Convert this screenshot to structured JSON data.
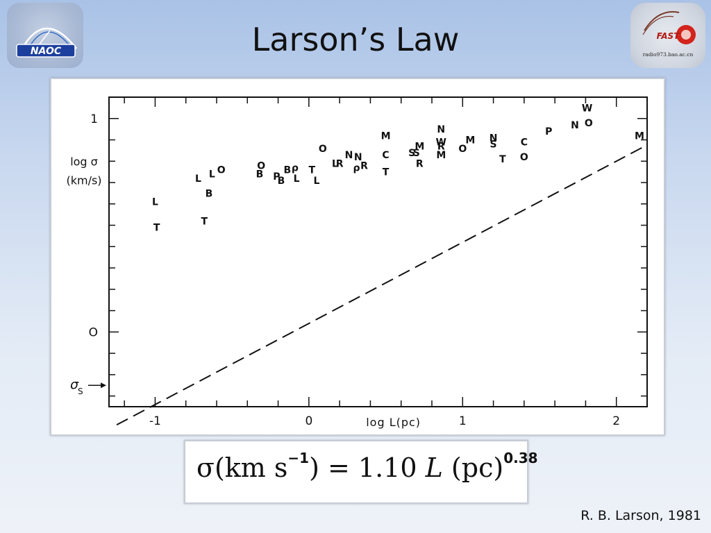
{
  "title": "Larson’s Law",
  "logos": {
    "left_text": "NAOC",
    "right_text": "FAST",
    "right_url": "radio973.bao.ac.cn"
  },
  "citation": "R. B. Larson, 1981",
  "formula": {
    "lhs": "σ(km s",
    "lhs_exp": "−1",
    "lhs_close": ")",
    "eq": " = 1.10 ",
    "var": "L",
    "unit": " (pc)",
    "exp": "0.38"
  },
  "chart_data": {
    "type": "scatter",
    "xlabel": "log L(pc)",
    "ylabel": [
      "log σ",
      "(km/s)"
    ],
    "sigma_label": "σ",
    "sigma_sub": "S",
    "xlim": [
      -1.3,
      2.2
    ],
    "ylim": [
      -0.35,
      1.1
    ],
    "x_ticks": [
      {
        "v": -1,
        "label": "-1"
      },
      {
        "v": 0,
        "label": "0"
      },
      {
        "v": 1,
        "label": "1"
      },
      {
        "v": 2,
        "label": "2"
      }
    ],
    "y_ticks": [
      {
        "v": 0,
        "label": "O"
      },
      {
        "v": 1,
        "label": "1"
      }
    ],
    "sigma_s_level": -0.25,
    "fit": {
      "slope": 0.38,
      "intercept": 0.04,
      "x_range": [
        -1.25,
        2.2
      ]
    },
    "points": [
      {
        "x": -1.0,
        "y": 0.61,
        "label": "L"
      },
      {
        "x": -0.72,
        "y": 0.72,
        "label": "L"
      },
      {
        "x": -0.63,
        "y": 0.74,
        "label": "L"
      },
      {
        "x": -0.57,
        "y": 0.76,
        "label": "O"
      },
      {
        "x": -0.65,
        "y": 0.65,
        "label": "B"
      },
      {
        "x": -0.68,
        "y": 0.52,
        "label": "T"
      },
      {
        "x": -0.99,
        "y": 0.49,
        "label": "T"
      },
      {
        "x": -0.31,
        "y": 0.78,
        "label": "O"
      },
      {
        "x": -0.32,
        "y": 0.74,
        "label": "B"
      },
      {
        "x": -0.21,
        "y": 0.73,
        "label": "P"
      },
      {
        "x": -0.18,
        "y": 0.71,
        "label": "B"
      },
      {
        "x": -0.14,
        "y": 0.76,
        "label": "B"
      },
      {
        "x": -0.09,
        "y": 0.77,
        "label": "ρ"
      },
      {
        "x": -0.08,
        "y": 0.72,
        "label": "L"
      },
      {
        "x": 0.02,
        "y": 0.76,
        "label": "T"
      },
      {
        "x": 0.05,
        "y": 0.71,
        "label": "L"
      },
      {
        "x": 0.09,
        "y": 0.86,
        "label": "O"
      },
      {
        "x": 0.17,
        "y": 0.79,
        "label": "L"
      },
      {
        "x": 0.2,
        "y": 0.79,
        "label": "R"
      },
      {
        "x": 0.26,
        "y": 0.83,
        "label": "N"
      },
      {
        "x": 0.32,
        "y": 0.82,
        "label": "N"
      },
      {
        "x": 0.31,
        "y": 0.77,
        "label": "ρ"
      },
      {
        "x": 0.36,
        "y": 0.78,
        "label": "R"
      },
      {
        "x": 0.5,
        "y": 0.92,
        "label": "M"
      },
      {
        "x": 0.5,
        "y": 0.83,
        "label": "C"
      },
      {
        "x": 0.5,
        "y": 0.75,
        "label": "T"
      },
      {
        "x": 0.67,
        "y": 0.84,
        "label": "S"
      },
      {
        "x": 0.7,
        "y": 0.84,
        "label": "S"
      },
      {
        "x": 0.72,
        "y": 0.87,
        "label": "M"
      },
      {
        "x": 0.72,
        "y": 0.79,
        "label": "R"
      },
      {
        "x": 0.86,
        "y": 0.95,
        "label": "N"
      },
      {
        "x": 0.86,
        "y": 0.89,
        "label": "W"
      },
      {
        "x": 0.86,
        "y": 0.87,
        "label": "R"
      },
      {
        "x": 0.86,
        "y": 0.83,
        "label": "M"
      },
      {
        "x": 1.0,
        "y": 0.86,
        "label": "O"
      },
      {
        "x": 1.05,
        "y": 0.9,
        "label": "M"
      },
      {
        "x": 1.2,
        "y": 0.91,
        "label": "N"
      },
      {
        "x": 1.2,
        "y": 0.88,
        "label": "S"
      },
      {
        "x": 1.4,
        "y": 0.89,
        "label": "C"
      },
      {
        "x": 1.26,
        "y": 0.81,
        "label": "T"
      },
      {
        "x": 1.4,
        "y": 0.82,
        "label": "O"
      },
      {
        "x": 1.56,
        "y": 0.94,
        "label": "P"
      },
      {
        "x": 1.73,
        "y": 0.97,
        "label": "N"
      },
      {
        "x": 1.82,
        "y": 0.98,
        "label": "O"
      },
      {
        "x": 1.81,
        "y": 1.05,
        "label": "W"
      },
      {
        "x": 2.15,
        "y": 0.92,
        "label": "M"
      }
    ]
  }
}
